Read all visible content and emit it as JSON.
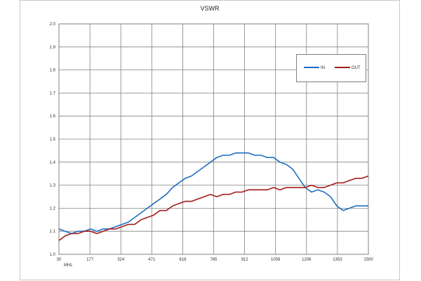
{
  "chart_data": {
    "type": "line",
    "title": "VSWR",
    "x_unit_label": "MHz",
    "x_ticks": [
      "30",
      "177",
      "324",
      "471",
      "618",
      "765",
      "912",
      "1059",
      "1206",
      "1353",
      "1500"
    ],
    "xlim": [
      30,
      1500
    ],
    "ylim": [
      1.0,
      2.0
    ],
    "y_ticks": [
      "1.0",
      "1.1",
      "1.2",
      "1.3",
      "1.4",
      "1.5",
      "1.6",
      "1.7",
      "1.8",
      "1.9",
      "2.0"
    ],
    "grid": true,
    "legend_position": "top-right",
    "series": [
      {
        "name": "IN",
        "color": "#1f6fbf",
        "x": [
          30,
          60,
          90,
          120,
          150,
          180,
          210,
          240,
          270,
          300,
          330,
          360,
          390,
          420,
          450,
          480,
          510,
          540,
          570,
          600,
          630,
          660,
          690,
          720,
          750,
          780,
          810,
          840,
          870,
          900,
          930,
          960,
          990,
          1020,
          1050,
          1080,
          1110,
          1140,
          1170,
          1200,
          1230,
          1260,
          1290,
          1320,
          1350,
          1380,
          1410,
          1440,
          1470,
          1500
        ],
        "values": [
          1.11,
          1.1,
          1.09,
          1.1,
          1.1,
          1.11,
          1.1,
          1.11,
          1.11,
          1.12,
          1.13,
          1.14,
          1.16,
          1.18,
          1.2,
          1.22,
          1.24,
          1.26,
          1.29,
          1.31,
          1.33,
          1.34,
          1.36,
          1.38,
          1.4,
          1.42,
          1.43,
          1.43,
          1.44,
          1.44,
          1.44,
          1.43,
          1.43,
          1.42,
          1.42,
          1.4,
          1.39,
          1.37,
          1.33,
          1.29,
          1.27,
          1.28,
          1.27,
          1.25,
          1.21,
          1.19,
          1.2,
          1.21,
          1.21,
          1.21
        ]
      },
      {
        "name": "OUT",
        "color": "#a51c1c",
        "x": [
          30,
          60,
          90,
          120,
          150,
          180,
          210,
          240,
          270,
          300,
          330,
          360,
          390,
          420,
          450,
          480,
          510,
          540,
          570,
          600,
          630,
          660,
          690,
          720,
          750,
          780,
          810,
          840,
          870,
          900,
          930,
          960,
          990,
          1020,
          1050,
          1080,
          1110,
          1140,
          1170,
          1200,
          1230,
          1260,
          1290,
          1320,
          1350,
          1380,
          1410,
          1440,
          1470,
          1500
        ],
        "values": [
          1.06,
          1.08,
          1.09,
          1.09,
          1.1,
          1.1,
          1.09,
          1.1,
          1.11,
          1.11,
          1.12,
          1.13,
          1.13,
          1.15,
          1.16,
          1.17,
          1.19,
          1.19,
          1.21,
          1.22,
          1.23,
          1.23,
          1.24,
          1.25,
          1.26,
          1.25,
          1.26,
          1.26,
          1.27,
          1.27,
          1.28,
          1.28,
          1.28,
          1.28,
          1.29,
          1.28,
          1.29,
          1.29,
          1.29,
          1.29,
          1.3,
          1.29,
          1.29,
          1.3,
          1.31,
          1.31,
          1.32,
          1.33,
          1.33,
          1.34
        ]
      }
    ]
  }
}
